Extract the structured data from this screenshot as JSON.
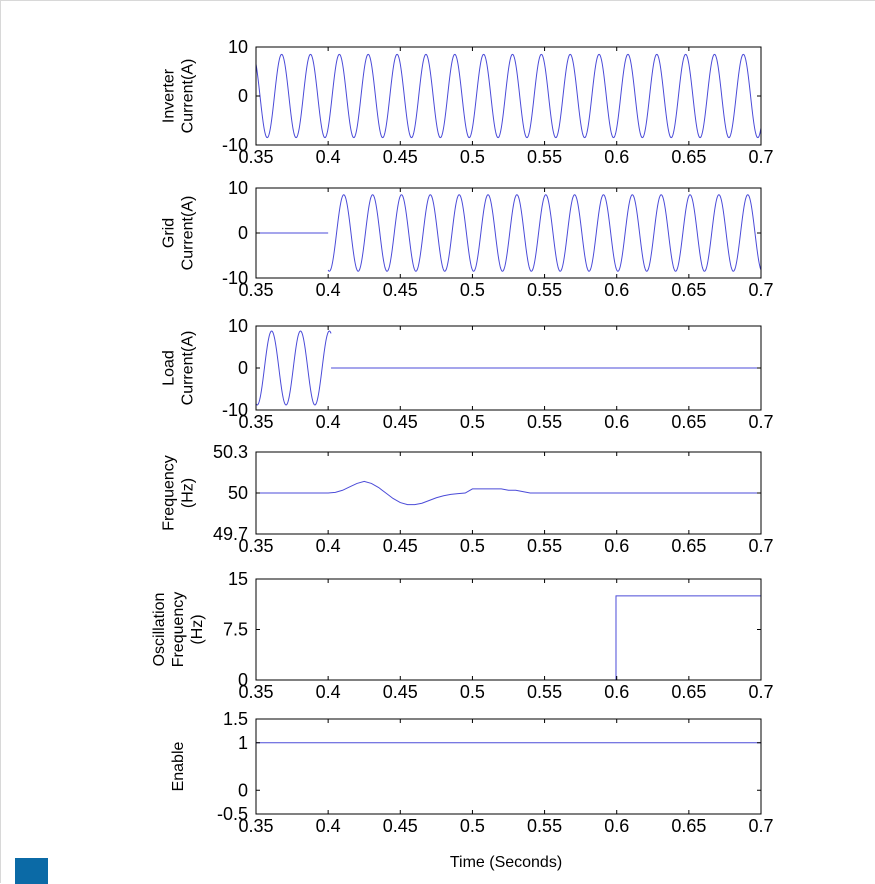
{
  "chart_data": [
    {
      "id": "inverter",
      "type": "line",
      "ylabel_lines": [
        "Inverter",
        "Current(A)"
      ],
      "ylim": [
        -10,
        10
      ],
      "yticks": [
        {
          "value": -10,
          "label": "-10"
        },
        {
          "value": 0,
          "label": "0"
        },
        {
          "value": 10,
          "label": "10"
        }
      ],
      "xlim": [
        0.35,
        0.7
      ],
      "xticks": [
        "0.35",
        "0.4",
        "0.45",
        "0.5",
        "0.55",
        "0.6",
        "0.65",
        "0.7"
      ],
      "series": [
        {
          "kind": "sine",
          "start": 0.35,
          "end": 0.7,
          "freq_hz": 50,
          "amplitude": 8.5,
          "phase_deg": -50,
          "offset": 0
        }
      ]
    },
    {
      "id": "grid",
      "type": "line",
      "ylabel_lines": [
        "Grid",
        "Current(A)"
      ],
      "ylim": [
        -10,
        10
      ],
      "yticks": [
        {
          "value": -10,
          "label": "-10"
        },
        {
          "value": 0,
          "label": "0"
        },
        {
          "value": 10,
          "label": "10"
        }
      ],
      "xlim": [
        0.35,
        0.7
      ],
      "xticks": [
        "0.35",
        "0.4",
        "0.45",
        "0.5",
        "0.55",
        "0.6",
        "0.65",
        "0.7"
      ],
      "series": [
        {
          "kind": "points",
          "points": [
            [
              0.35,
              0
            ],
            [
              0.4,
              0
            ]
          ]
        },
        {
          "kind": "sine",
          "start": 0.4,
          "end": 0.7,
          "freq_hz": 50,
          "amplitude": 8.5,
          "phase_deg": -105,
          "offset": 0
        }
      ]
    },
    {
      "id": "load",
      "type": "line",
      "ylabel_lines": [
        "Load",
        "Current(A)"
      ],
      "ylim": [
        -10,
        10
      ],
      "yticks": [
        {
          "value": -10,
          "label": "-10"
        },
        {
          "value": 0,
          "label": "0"
        },
        {
          "value": 10,
          "label": "10"
        }
      ],
      "xlim": [
        0.35,
        0.7
      ],
      "xticks": [
        "0.35",
        "0.4",
        "0.45",
        "0.5",
        "0.55",
        "0.6",
        "0.65",
        "0.7"
      ],
      "series": [
        {
          "kind": "sine",
          "start": 0.35,
          "end": 0.402,
          "freq_hz": 50,
          "amplitude": 8.8,
          "phase_deg": 75,
          "offset": 0
        },
        {
          "kind": "points",
          "points": [
            [
              0.402,
              0
            ],
            [
              0.7,
              0
            ]
          ]
        }
      ]
    },
    {
      "id": "frequency",
      "type": "line",
      "ylabel_lines": [
        "Frequency",
        "(Hz)"
      ],
      "ylim": [
        49.7,
        50.3
      ],
      "yticks": [
        {
          "value": 49.7,
          "label": "49.7"
        },
        {
          "value": 50,
          "label": "50"
        },
        {
          "value": 50.3,
          "label": "50.3"
        }
      ],
      "xlim": [
        0.35,
        0.7
      ],
      "xticks": [
        "0.35",
        "0.4",
        "0.45",
        "0.5",
        "0.55",
        "0.6",
        "0.65",
        "0.7"
      ],
      "series": [
        {
          "kind": "points",
          "points": [
            [
              0.35,
              50.0
            ],
            [
              0.4,
              50.0
            ],
            [
              0.405,
              50.005
            ],
            [
              0.41,
              50.02
            ],
            [
              0.415,
              50.045
            ],
            [
              0.42,
              50.07
            ],
            [
              0.425,
              50.085
            ],
            [
              0.43,
              50.07
            ],
            [
              0.435,
              50.04
            ],
            [
              0.44,
              50.0
            ],
            [
              0.445,
              49.96
            ],
            [
              0.45,
              49.93
            ],
            [
              0.455,
              49.915
            ],
            [
              0.46,
              49.915
            ],
            [
              0.465,
              49.925
            ],
            [
              0.47,
              49.945
            ],
            [
              0.475,
              49.965
            ],
            [
              0.48,
              49.98
            ],
            [
              0.485,
              49.99
            ],
            [
              0.49,
              49.995
            ],
            [
              0.495,
              50.0
            ],
            [
              0.5,
              50.03
            ],
            [
              0.505,
              50.03
            ],
            [
              0.51,
              50.03
            ],
            [
              0.515,
              50.03
            ],
            [
              0.52,
              50.03
            ],
            [
              0.525,
              50.02
            ],
            [
              0.53,
              50.02
            ],
            [
              0.535,
              50.01
            ],
            [
              0.54,
              50.0
            ],
            [
              0.545,
              50.0
            ],
            [
              0.7,
              50.0
            ]
          ]
        }
      ]
    },
    {
      "id": "oscillation",
      "type": "line",
      "ylabel_lines": [
        "Oscillation",
        "Frequency",
        "(Hz)"
      ],
      "ylim": [
        0,
        15
      ],
      "yticks": [
        {
          "value": 0,
          "label": "0"
        },
        {
          "value": 7.5,
          "label": "7.5"
        },
        {
          "value": 15,
          "label": "15"
        }
      ],
      "xlim": [
        0.35,
        0.7
      ],
      "xticks": [
        "0.35",
        "0.4",
        "0.45",
        "0.5",
        "0.55",
        "0.6",
        "0.65",
        "0.7"
      ],
      "series": [
        {
          "kind": "points",
          "points": [
            [
              0.35,
              0
            ],
            [
              0.5995,
              0
            ],
            [
              0.5995,
              12.5
            ],
            [
              0.7,
              12.5
            ]
          ]
        }
      ]
    },
    {
      "id": "enable",
      "type": "line",
      "ylabel_lines": [
        "Enable"
      ],
      "ylim": [
        -0.5,
        1.5
      ],
      "yticks": [
        {
          "value": -0.5,
          "label": "-0.5"
        },
        {
          "value": 0,
          "label": "0"
        },
        {
          "value": 1,
          "label": "1"
        },
        {
          "value": 1.5,
          "label": "1.5"
        }
      ],
      "xlim": [
        0.35,
        0.7
      ],
      "xticks": [
        "0.35",
        "0.4",
        "0.45",
        "0.5",
        "0.55",
        "0.6",
        "0.65",
        "0.7"
      ],
      "series": [
        {
          "kind": "points",
          "points": [
            [
              0.35,
              1
            ],
            [
              0.7,
              1
            ]
          ]
        }
      ]
    }
  ],
  "xlabel": "Time (Seconds)",
  "colors": {
    "line": "#4b4bd8",
    "axes": "#000000",
    "background": "#ffffff",
    "frame_border": "#d8d8d8",
    "corner_marker": "#0b6aa6"
  }
}
